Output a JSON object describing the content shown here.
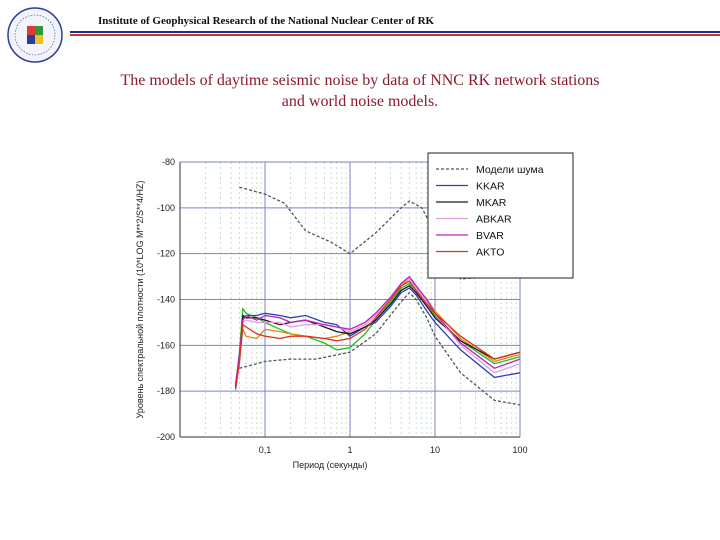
{
  "header": {
    "institute": "Institute of Geophysical Research of the National Nuclear Center of RK"
  },
  "title": {
    "line1": "The models of daytime seismic noise by data of NNC RK network stations",
    "line2": "and world noise models."
  },
  "colors": {
    "header_blue": "#1b2f8f",
    "header_red": "#d0322a",
    "title": "#8b1a2c"
  },
  "chart_data": {
    "type": "line",
    "x_scale": "log",
    "xlim": [
      0.01,
      100
    ],
    "ylim": [
      -200,
      -80
    ],
    "xlabel": "Период (секунды)",
    "ylabel": "Уровень спектральной плотности (10*LOG M**2/S**4/HZ)",
    "x_ticks": [
      {
        "value": 0.1,
        "label": "0,1"
      },
      {
        "value": 1,
        "label": "1"
      },
      {
        "value": 10,
        "label": "10"
      },
      {
        "value": 100,
        "label": "100"
      }
    ],
    "y_ticks": [
      -80,
      -100,
      -120,
      -140,
      -160,
      -180,
      -200
    ],
    "grid": true,
    "legend_position": "top-right",
    "series": [
      {
        "name": "Модели шума",
        "color": "#555555",
        "style": "dashed",
        "x": [
          0.05,
          0.1,
          0.17,
          0.3,
          0.6,
          1.0,
          2.0,
          4.0,
          5.0,
          7.0,
          10,
          20,
          50,
          100
        ],
        "y": [
          -91,
          -94,
          -98,
          -110,
          -115,
          -120,
          -111,
          -100,
          -97,
          -100,
          -111,
          -131,
          -130,
          -127
        ]
      },
      {
        "name": "Модели шума",
        "color": "#555555",
        "style": "dashed",
        "x": [
          0.05,
          0.1,
          0.2,
          0.4,
          1.0,
          2.0,
          4.0,
          5.0,
          6.0,
          8.0,
          10,
          20,
          50,
          100
        ],
        "y": [
          -170,
          -167,
          -166,
          -166,
          -163,
          -155,
          -141,
          -137,
          -140,
          -148,
          -156,
          -172,
          -184,
          -186
        ]
      },
      {
        "name": "KKAR",
        "color": "#2b3fbf",
        "style": "solid",
        "x": [
          0.045,
          0.05,
          0.055,
          0.06,
          0.08,
          0.1,
          0.15,
          0.2,
          0.3,
          0.5,
          0.7,
          1.0,
          1.5,
          2.0,
          3.0,
          4.0,
          5.0,
          6.0,
          8.0,
          10,
          20,
          50,
          100
        ],
        "y": [
          -180,
          -166,
          -148,
          -147,
          -147,
          -146,
          -147,
          -148,
          -147,
          -150,
          -151,
          -156,
          -152,
          -150,
          -143,
          -137,
          -135,
          -138,
          -145,
          -150,
          -162,
          -174,
          -172
        ]
      },
      {
        "name": "MKAR",
        "color": "#1a1a1a",
        "style": "solid",
        "x": [
          0.045,
          0.05,
          0.055,
          0.06,
          0.08,
          0.1,
          0.15,
          0.2,
          0.3,
          0.5,
          0.7,
          1.0,
          1.5,
          2.0,
          3.0,
          4.0,
          5.0,
          6.0,
          8.0,
          10,
          20,
          50,
          100
        ],
        "y": [
          -178,
          -166,
          -147,
          -148,
          -148,
          -149,
          -151,
          -150,
          -149,
          -152,
          -154,
          -155,
          -152,
          -149,
          -142,
          -136,
          -134,
          -137,
          -143,
          -148,
          -158,
          -166,
          -163
        ]
      },
      {
        "name": "ABKAR",
        "color": "#e0a0e0",
        "style": "solid",
        "x": [
          0.045,
          0.05,
          0.055,
          0.06,
          0.08,
          0.1,
          0.15,
          0.2,
          0.3,
          0.5,
          0.7,
          1.0,
          1.5,
          2.0,
          3.0,
          4.0,
          5.0,
          6.0,
          8.0,
          10,
          20,
          50,
          100
        ],
        "y": [
          -180,
          -165,
          -150,
          -149,
          -150,
          -150,
          -150,
          -152,
          -151,
          -151,
          -152,
          -154,
          -151,
          -147,
          -140,
          -133,
          -131,
          -135,
          -141,
          -146,
          -160,
          -172,
          -168
        ]
      },
      {
        "name": "BVAR",
        "color": "#c020c0",
        "style": "solid",
        "x": [
          0.045,
          0.05,
          0.055,
          0.06,
          0.08,
          0.1,
          0.15,
          0.2,
          0.3,
          0.5,
          0.7,
          1.0,
          1.5,
          2.0,
          3.0,
          4.0,
          5.0,
          6.0,
          8.0,
          10,
          20,
          50,
          100
        ],
        "y": [
          -177,
          -164,
          -149,
          -147,
          -149,
          -147,
          -148,
          -150,
          -149,
          -151,
          -152,
          -153,
          -150,
          -146,
          -139,
          -133,
          -130,
          -134,
          -140,
          -146,
          -159,
          -170,
          -166
        ]
      },
      {
        "name": "AKTO",
        "color": "#e03020",
        "style": "solid",
        "x": [
          0.045,
          0.05,
          0.055,
          0.06,
          0.08,
          0.1,
          0.15,
          0.2,
          0.3,
          0.5,
          0.7,
          1.0,
          1.5,
          2.0,
          3.0,
          4.0,
          5.0,
          6.0,
          8.0,
          10,
          20,
          50,
          100
        ],
        "y": [
          -179,
          -168,
          -151,
          -152,
          -155,
          -156,
          -157,
          -156,
          -156,
          -157,
          -158,
          -157,
          -153,
          -148,
          -140,
          -134,
          -132,
          -136,
          -142,
          -146,
          -156,
          -166,
          -163
        ]
      }
    ],
    "extra_series": [
      {
        "color": "#20c020",
        "x": [
          0.045,
          0.05,
          0.055,
          0.06,
          0.08,
          0.1,
          0.15,
          0.2,
          0.3,
          0.5,
          0.7,
          1.0,
          1.5,
          2.0,
          3.0,
          4.0,
          5.0,
          6.0,
          8.0,
          10,
          20,
          50,
          100
        ],
        "y": [
          -179,
          -163,
          -144,
          -146,
          -148,
          -150,
          -153,
          -155,
          -156,
          -159,
          -162,
          -161,
          -155,
          -149,
          -141,
          -135,
          -133,
          -136,
          -142,
          -147,
          -158,
          -168,
          -165
        ]
      },
      {
        "color": "#e08a10",
        "x": [
          0.045,
          0.05,
          0.055,
          0.06,
          0.08,
          0.1,
          0.15,
          0.2,
          0.3,
          0.5,
          0.7,
          1.0,
          1.5,
          2.0,
          3.0,
          4.0,
          5.0,
          6.0,
          8.0,
          10,
          20,
          50,
          100
        ],
        "y": [
          -178,
          -165,
          -153,
          -156,
          -157,
          -153,
          -154,
          -155,
          -156,
          -157,
          -156,
          -154,
          -151,
          -147,
          -140,
          -134,
          -131,
          -134,
          -140,
          -145,
          -157,
          -167,
          -164
        ]
      }
    ]
  }
}
